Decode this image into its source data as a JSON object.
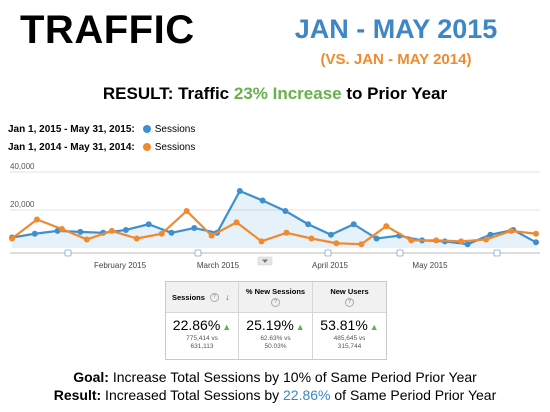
{
  "slide": {
    "title": "TRAFFIC",
    "period": "JAN - MAY 2015",
    "comparison": "(VS. JAN - MAY 2014)",
    "result_prefix": "RESULT: Traffic ",
    "result_highlight": "23% Increase",
    "result_suffix": " to Prior Year",
    "goal_label": "Goal:",
    "goal_text": " Increase Total Sessions by 10% of Same Period Prior Year",
    "achieved_label": "Result:",
    "achieved_prefix": " Increased Total Sessions by ",
    "achieved_highlight": "22.86%",
    "achieved_suffix": " of Same Period Prior Year"
  },
  "legend": [
    {
      "range": "Jan 1, 2015 - May 31, 2015:",
      "metric": "Sessions",
      "color": "#3e8fd0"
    },
    {
      "range": "Jan 1, 2014 - May 31, 2014:",
      "metric": "Sessions",
      "color": "#ef8a2e"
    }
  ],
  "chart_data": {
    "type": "line",
    "x_tick_labels": [
      "February 2015",
      "March 2015",
      "April 2015",
      "May 2015"
    ],
    "y_tick_labels": [
      "40,000",
      "20,000"
    ],
    "ylim": [
      0,
      40000
    ],
    "series": [
      {
        "name": "Jan 1, 2015 - May 31, 2015: Sessions",
        "color": "#3e8fd0",
        "area": true,
        "values": [
          5500,
          7500,
          9000,
          8500,
          8000,
          9500,
          12500,
          8000,
          10500,
          8000,
          30000,
          25000,
          19500,
          12500,
          7000,
          12500,
          5000,
          6500,
          4000,
          3500,
          2000,
          7000,
          9500,
          3000
        ]
      },
      {
        "name": "Jan 1, 2014 - May 31, 2014: Sessions",
        "color": "#ef8a2e",
        "area": false,
        "values": [
          5000,
          15000,
          10000,
          4500,
          9000,
          5000,
          7500,
          19500,
          6500,
          13500,
          3500,
          8000,
          5000,
          2500,
          2000,
          11500,
          4000,
          4000,
          3500,
          4500,
          9000,
          7500
        ]
      }
    ]
  },
  "summary": {
    "sessions": {
      "header": "Sessions",
      "value": "22.86%",
      "current": "775,414 vs",
      "previous": "631,113"
    },
    "new_sessions_pct": {
      "header": "% New Sessions",
      "value": "25.19%",
      "current": "62.63% vs",
      "previous": "50.03%"
    },
    "new_users": {
      "header": "New Users",
      "value": "53.81%",
      "current": "485,645 vs",
      "previous": "315,744"
    }
  }
}
